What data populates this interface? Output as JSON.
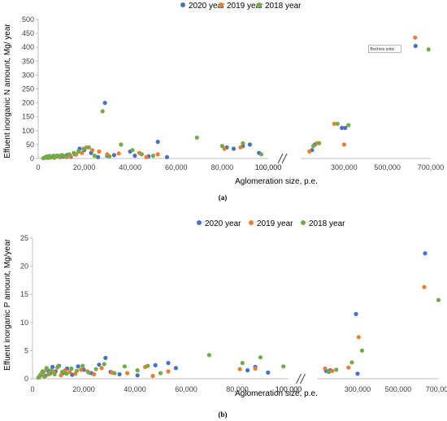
{
  "chart_data": [
    {
      "type": "scatter",
      "panel": "(a)",
      "ylabel": "Effuent inorganic N amount, Mg/ year",
      "xlabel": "Aglomeration size, p.e.",
      "ylim": [
        0,
        500
      ],
      "y_ticks": [
        0,
        50,
        100,
        150,
        200,
        250,
        300,
        350,
        400,
        450,
        500
      ],
      "x_ticks_left": [
        "0",
        "20,000",
        "40,000",
        "60,000",
        "80,000",
        "100,000"
      ],
      "x_ticks_right": [
        "100,000",
        "300,000",
        "500,000",
        "700,000"
      ],
      "axis_break": true,
      "legend_position": "top",
      "grid": false,
      "annotations": [
        {
          "text": "Brežinio sritis",
          "x": 630000,
          "y": 410
        }
      ],
      "series": [
        {
          "name": "2020 year",
          "color": "#4472C4",
          "x": [
            2500,
            3200,
            3900,
            4600,
            5300,
            6100,
            7000,
            8200,
            9500,
            11000,
            12500,
            14200,
            16000,
            18000,
            20000,
            23000,
            26000,
            29000,
            30000,
            33000,
            40000,
            42000,
            48000,
            52000,
            56000,
            82000,
            85000,
            89000,
            92000,
            96000,
            152000,
            165000,
            290000,
            305000,
            630000
          ],
          "y": [
            2,
            5,
            3,
            8,
            4,
            6,
            3,
            10,
            5,
            7,
            12,
            6,
            15,
            35,
            30,
            20,
            5,
            200,
            10,
            12,
            25,
            10,
            8,
            60,
            5,
            40,
            35,
            45,
            50,
            20,
            30,
            50,
            110,
            110,
            405
          ]
        },
        {
          "name": "2019 year",
          "color": "#ED7D31",
          "x": [
            2800,
            3600,
            4300,
            5000,
            5800,
            6800,
            8000,
            9300,
            10800,
            12400,
            14000,
            16500,
            19000,
            21000,
            23500,
            26500,
            30000,
            35000,
            44000,
            47000,
            52000,
            81000,
            88000,
            140000,
            175000,
            255000,
            300000,
            628000
          ],
          "y": [
            3,
            6,
            2,
            9,
            5,
            4,
            8,
            6,
            11,
            5,
            9,
            14,
            20,
            40,
            30,
            25,
            15,
            18,
            20,
            5,
            15,
            35,
            40,
            25,
            55,
            125,
            50,
            435
          ]
        },
        {
          "name": "2018 year",
          "color": "#70AD47",
          "x": [
            2200,
            3000,
            3700,
            4400,
            5100,
            5900,
            6700,
            7600,
            8800,
            10200,
            11800,
            13500,
            15500,
            17500,
            19800,
            22000,
            24500,
            28000,
            31000,
            36000,
            41000,
            45000,
            50000,
            69000,
            80000,
            89000,
            97000,
            158000,
            185000,
            270000,
            320000,
            690000
          ],
          "y": [
            1,
            4,
            7,
            3,
            8,
            5,
            10,
            6,
            9,
            12,
            7,
            15,
            20,
            25,
            35,
            40,
            10,
            170,
            8,
            50,
            30,
            15,
            10,
            75,
            45,
            55,
            15,
            45,
            55,
            125,
            120,
            392
          ]
        }
      ]
    },
    {
      "type": "scatter",
      "panel": "(b)",
      "ylabel": "Effuent inorganic P amount, Mg/year",
      "xlabel": "Aglomeration size, p.e.",
      "ylim": [
        0,
        25
      ],
      "y_ticks": [
        0,
        5,
        10,
        15,
        20,
        25
      ],
      "x_ticks_left": [
        "0",
        "20,000",
        "40,000",
        "60,000",
        "80,000",
        "100,000"
      ],
      "x_ticks_right": [
        "100,000",
        "300,000",
        "500,000",
        "700,000"
      ],
      "axis_break": true,
      "legend_position": "top",
      "grid": false,
      "annotations": [],
      "series": [
        {
          "name": "2020 year",
          "color": "#4472C4",
          "x": [
            2600,
            3400,
            4200,
            5000,
            5900,
            6800,
            7800,
            9000,
            10300,
            11800,
            13500,
            15500,
            17800,
            20000,
            23000,
            26000,
            28500,
            30500,
            34000,
            41000,
            48000,
            53000,
            56000,
            84000,
            87000,
            92000,
            145000,
            165000,
            292000,
            300000,
            632000
          ],
          "y": [
            0.3,
            0.8,
            1.2,
            0.5,
            1.5,
            0.9,
            2.1,
            1.3,
            2.3,
            1.0,
            1.8,
            0.7,
            2.2,
            1.6,
            1.0,
            2.5,
            3.7,
            1.2,
            0.8,
            0.6,
            2.4,
            2.8,
            1.9,
            1.5,
            2.1,
            1.1,
            1.4,
            1.5,
            11.5,
            0.9,
            22.3
          ]
        },
        {
          "name": "2019 year",
          "color": "#ED7D31",
          "x": [
            2900,
            3700,
            4500,
            5400,
            6300,
            7300,
            8400,
            9700,
            11100,
            12800,
            14600,
            16700,
            19000,
            21500,
            24000,
            27000,
            31000,
            37000,
            44000,
            47000,
            53000,
            81000,
            87000,
            140000,
            175000,
            255000,
            305000,
            628000
          ],
          "y": [
            0.5,
            1.0,
            0.4,
            1.7,
            0.8,
            1.4,
            1.1,
            2.0,
            0.6,
            1.5,
            1.2,
            0.9,
            1.6,
            1.3,
            0.8,
            1.9,
            1.1,
            1.0,
            2.1,
            0.5,
            1.3,
            1.7,
            1.8,
            1.8,
            1.4,
            2.0,
            7.4,
            16.3
          ]
        },
        {
          "name": "2018 year",
          "color": "#70AD47",
          "x": [
            2300,
            3100,
            3900,
            4700,
            5500,
            6400,
            7400,
            8600,
            10000,
            11600,
            13300,
            15200,
            17300,
            19600,
            22000,
            24800,
            28000,
            32000,
            36000,
            41000,
            45000,
            50000,
            69000,
            82000,
            89000,
            98000,
            158000,
            195000,
            272000,
            322000,
            698000
          ],
          "y": [
            0.2,
            0.7,
            1.3,
            0.4,
            1.9,
            1.0,
            1.5,
            0.8,
            2.2,
            1.2,
            0.9,
            1.8,
            1.4,
            2.3,
            1.1,
            1.7,
            2.6,
            1.0,
            2.2,
            1.5,
            2.3,
            1.0,
            4.2,
            2.8,
            3.8,
            2.2,
            1.2,
            1.6,
            2.9,
            5.0,
            14.0
          ]
        }
      ]
    }
  ]
}
